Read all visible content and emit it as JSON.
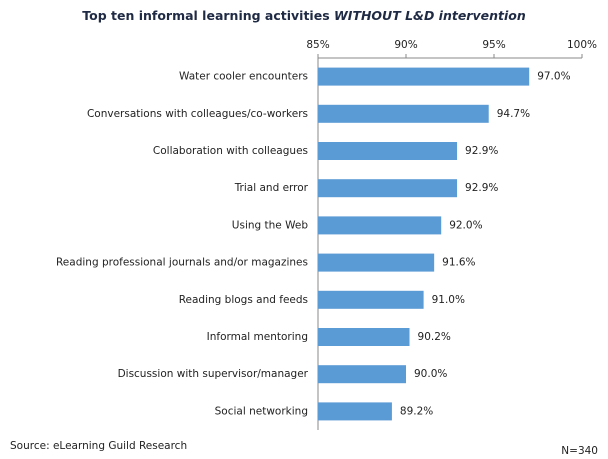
{
  "chart_data": {
    "type": "bar",
    "orientation": "horizontal",
    "title": "Top ten informal learning activities ",
    "title_emphasis": "WITHOUT L&D intervention",
    "categories": [
      "Water cooler encounters",
      "Conversations with colleagues/co-workers",
      "Collaboration with colleagues",
      "Trial and error",
      "Using the Web",
      "Reading  professional journals and/or magazines",
      "Reading blogs and feeds",
      "Informal mentoring",
      "Discussion with supervisor/manager",
      "Social networking"
    ],
    "values": [
      97.0,
      94.7,
      92.9,
      92.9,
      92.0,
      91.6,
      91.0,
      90.2,
      90.0,
      89.2
    ],
    "value_labels": [
      "97.0%",
      "94.7%",
      "92.9%",
      "92.9%",
      "92.0%",
      "91.6%",
      "91.0%",
      "90.2%",
      "90.0%",
      "89.2%"
    ],
    "color": "#5b9bd5",
    "xlim": [
      85,
      100
    ],
    "xticks": [
      {
        "value": 85,
        "label": "85%"
      },
      {
        "value": 90,
        "label": "90%"
      },
      {
        "value": 95,
        "label": "95%"
      },
      {
        "value": 100,
        "label": "100%"
      }
    ],
    "source": "Source: eLearning Guild Research",
    "note": "N=340"
  }
}
